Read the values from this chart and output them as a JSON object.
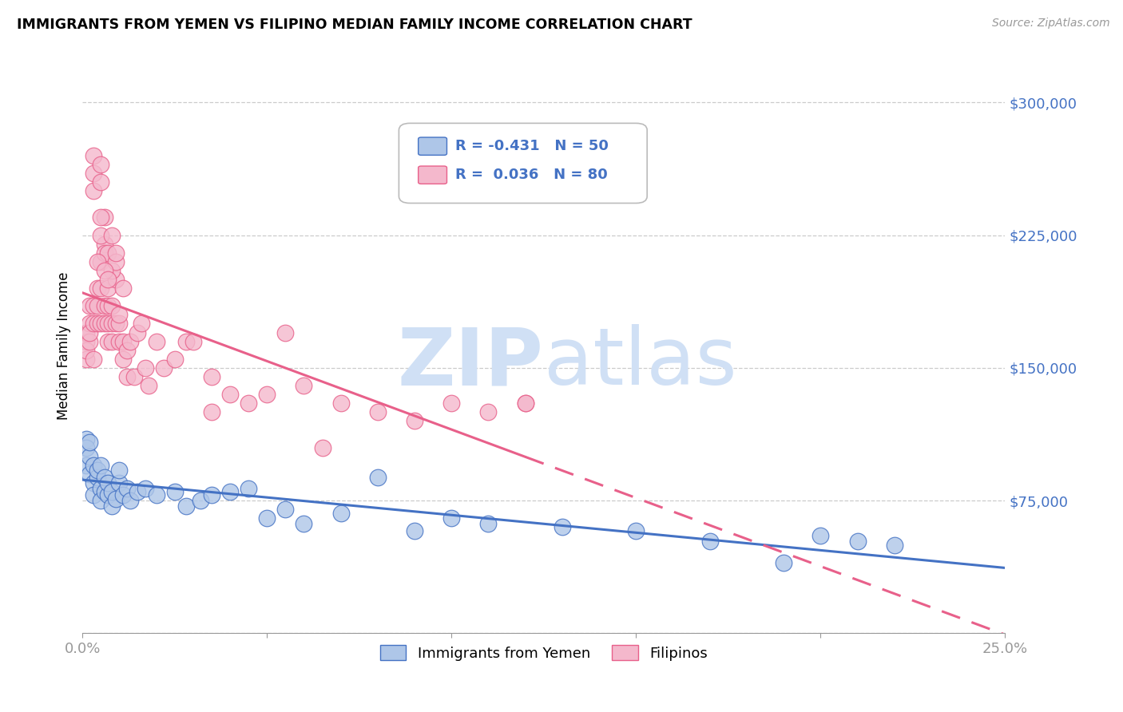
{
  "title": "IMMIGRANTS FROM YEMEN VS FILIPINO MEDIAN FAMILY INCOME CORRELATION CHART",
  "source": "Source: ZipAtlas.com",
  "ylabel": "Median Family Income",
  "xlim": [
    0.0,
    0.25
  ],
  "ylim": [
    0,
    325000
  ],
  "legend_label1": "Immigrants from Yemen",
  "legend_label2": "Filipinos",
  "legend_R1": "-0.431",
  "legend_N1": "50",
  "legend_R2": "0.036",
  "legend_N2": "80",
  "color_yemen": "#aec6e8",
  "color_filipino": "#f4b8cc",
  "color_line_yemen": "#4472c4",
  "color_line_filipino": "#e8608a",
  "color_axis_labels": "#4472c4",
  "watermark_color": "#d0e0f5",
  "yemen_x": [
    0.001,
    0.001,
    0.001,
    0.002,
    0.002,
    0.002,
    0.003,
    0.003,
    0.003,
    0.004,
    0.004,
    0.005,
    0.005,
    0.005,
    0.006,
    0.006,
    0.007,
    0.007,
    0.008,
    0.008,
    0.009,
    0.01,
    0.01,
    0.011,
    0.012,
    0.013,
    0.015,
    0.017,
    0.02,
    0.025,
    0.028,
    0.032,
    0.035,
    0.04,
    0.045,
    0.05,
    0.055,
    0.06,
    0.07,
    0.08,
    0.09,
    0.1,
    0.11,
    0.13,
    0.15,
    0.17,
    0.19,
    0.2,
    0.21,
    0.22
  ],
  "yemen_y": [
    110000,
    105000,
    95000,
    100000,
    90000,
    108000,
    95000,
    85000,
    78000,
    88000,
    92000,
    82000,
    75000,
    95000,
    80000,
    88000,
    78000,
    85000,
    72000,
    80000,
    76000,
    85000,
    92000,
    78000,
    82000,
    75000,
    80000,
    82000,
    78000,
    80000,
    72000,
    75000,
    78000,
    80000,
    82000,
    65000,
    70000,
    62000,
    68000,
    88000,
    58000,
    65000,
    62000,
    60000,
    58000,
    52000,
    40000,
    55000,
    52000,
    50000
  ],
  "filipino_x": [
    0.001,
    0.001,
    0.001,
    0.001,
    0.002,
    0.002,
    0.002,
    0.002,
    0.003,
    0.003,
    0.003,
    0.003,
    0.003,
    0.004,
    0.004,
    0.004,
    0.005,
    0.005,
    0.005,
    0.005,
    0.005,
    0.006,
    0.006,
    0.006,
    0.006,
    0.007,
    0.007,
    0.007,
    0.007,
    0.008,
    0.008,
    0.008,
    0.009,
    0.009,
    0.01,
    0.01,
    0.011,
    0.011,
    0.012,
    0.012,
    0.013,
    0.014,
    0.015,
    0.016,
    0.017,
    0.018,
    0.02,
    0.022,
    0.025,
    0.028,
    0.03,
    0.035,
    0.035,
    0.04,
    0.045,
    0.05,
    0.055,
    0.06,
    0.065,
    0.07,
    0.08,
    0.09,
    0.1,
    0.11,
    0.12,
    0.005,
    0.006,
    0.007,
    0.008,
    0.009,
    0.003,
    0.004,
    0.005,
    0.006,
    0.007,
    0.008,
    0.009,
    0.01,
    0.011,
    0.12
  ],
  "filipino_y": [
    165000,
    155000,
    170000,
    160000,
    175000,
    185000,
    165000,
    170000,
    270000,
    260000,
    250000,
    175000,
    185000,
    195000,
    185000,
    175000,
    265000,
    255000,
    210000,
    195000,
    175000,
    220000,
    215000,
    185000,
    175000,
    195000,
    185000,
    175000,
    165000,
    185000,
    175000,
    165000,
    200000,
    175000,
    175000,
    165000,
    165000,
    155000,
    160000,
    145000,
    165000,
    145000,
    170000,
    175000,
    150000,
    140000,
    165000,
    150000,
    155000,
    165000,
    165000,
    145000,
    125000,
    135000,
    130000,
    135000,
    170000,
    140000,
    105000,
    130000,
    125000,
    120000,
    130000,
    125000,
    130000,
    225000,
    235000,
    215000,
    205000,
    210000,
    155000,
    210000,
    235000,
    205000,
    200000,
    225000,
    215000,
    180000,
    195000,
    130000
  ]
}
